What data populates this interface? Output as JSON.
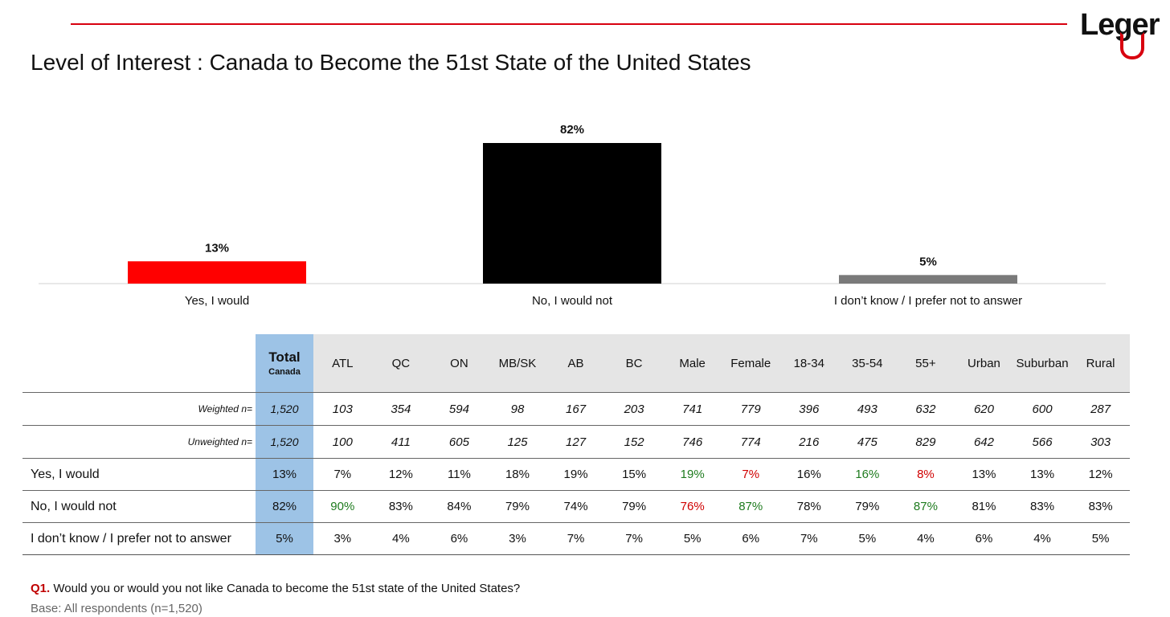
{
  "brand": {
    "logo_text": "Leger",
    "accent_color": "#d8000f"
  },
  "page_title": "Level of Interest : Canada to Become the 51st State of the United States",
  "chart_data": {
    "type": "bar",
    "categories": [
      "Yes, I would",
      "No, I would not",
      "I don’t know / I prefer not to answer"
    ],
    "values": [
      13,
      82,
      5
    ],
    "data_labels": [
      "13%",
      "82%",
      "5%"
    ],
    "colors": [
      "#ff0000",
      "#000000",
      "#7a7a7a"
    ],
    "ylim": [
      0,
      100
    ],
    "grid": false,
    "legend": "none"
  },
  "crosstab": {
    "total_header": {
      "main": "Total",
      "sub": "Canada"
    },
    "columns": [
      "ATL",
      "QC",
      "ON",
      "MB/SK",
      "AB",
      "BC",
      "Male",
      "Female",
      "18-34",
      "35-54",
      "55+",
      "Urban",
      "Suburban",
      "Rural"
    ],
    "rows": [
      {
        "label": "Weighted n=",
        "type": "n",
        "total": "1,520",
        "cells": [
          {
            "v": "103"
          },
          {
            "v": "354"
          },
          {
            "v": "594"
          },
          {
            "v": "98"
          },
          {
            "v": "167"
          },
          {
            "v": "203"
          },
          {
            "v": "741"
          },
          {
            "v": "779"
          },
          {
            "v": "396"
          },
          {
            "v": "493"
          },
          {
            "v": "632"
          },
          {
            "v": "620"
          },
          {
            "v": "600"
          },
          {
            "v": "287"
          }
        ]
      },
      {
        "label": "Unweighted n=",
        "type": "n",
        "total": "1,520",
        "cells": [
          {
            "v": "100"
          },
          {
            "v": "411"
          },
          {
            "v": "605"
          },
          {
            "v": "125"
          },
          {
            "v": "127"
          },
          {
            "v": "152"
          },
          {
            "v": "746"
          },
          {
            "v": "774"
          },
          {
            "v": "216"
          },
          {
            "v": "475"
          },
          {
            "v": "829"
          },
          {
            "v": "642"
          },
          {
            "v": "566"
          },
          {
            "v": "303"
          }
        ]
      },
      {
        "label": "Yes, I would",
        "type": "resp",
        "total": "13%",
        "cells": [
          {
            "v": "7%"
          },
          {
            "v": "12%"
          },
          {
            "v": "11%"
          },
          {
            "v": "18%"
          },
          {
            "v": "19%"
          },
          {
            "v": "15%"
          },
          {
            "v": "19%",
            "sig": "high"
          },
          {
            "v": "7%",
            "sig": "low"
          },
          {
            "v": "16%"
          },
          {
            "v": "16%",
            "sig": "high"
          },
          {
            "v": "8%",
            "sig": "low"
          },
          {
            "v": "13%"
          },
          {
            "v": "13%"
          },
          {
            "v": "12%"
          }
        ]
      },
      {
        "label": "No, I would not",
        "type": "resp",
        "total": "82%",
        "cells": [
          {
            "v": "90%",
            "sig": "high"
          },
          {
            "v": "83%"
          },
          {
            "v": "84%"
          },
          {
            "v": "79%"
          },
          {
            "v": "74%"
          },
          {
            "v": "79%"
          },
          {
            "v": "76%",
            "sig": "low"
          },
          {
            "v": "87%",
            "sig": "high"
          },
          {
            "v": "78%"
          },
          {
            "v": "79%"
          },
          {
            "v": "87%",
            "sig": "high"
          },
          {
            "v": "81%"
          },
          {
            "v": "83%"
          },
          {
            "v": "83%"
          }
        ]
      },
      {
        "label": "I don’t know / I prefer not to answer",
        "type": "resp",
        "total": "5%",
        "cells": [
          {
            "v": "3%"
          },
          {
            "v": "4%"
          },
          {
            "v": "6%"
          },
          {
            "v": "3%"
          },
          {
            "v": "7%"
          },
          {
            "v": "7%"
          },
          {
            "v": "5%"
          },
          {
            "v": "6%"
          },
          {
            "v": "7%"
          },
          {
            "v": "5%"
          },
          {
            "v": "4%"
          },
          {
            "v": "6%"
          },
          {
            "v": "4%"
          },
          {
            "v": "5%"
          }
        ]
      }
    ]
  },
  "footer": {
    "question_number": "Q1.",
    "question_text": " Would you or would you not like Canada to become the 51st state of the United States?",
    "base": "Base: All respondents (n=1,520)"
  }
}
